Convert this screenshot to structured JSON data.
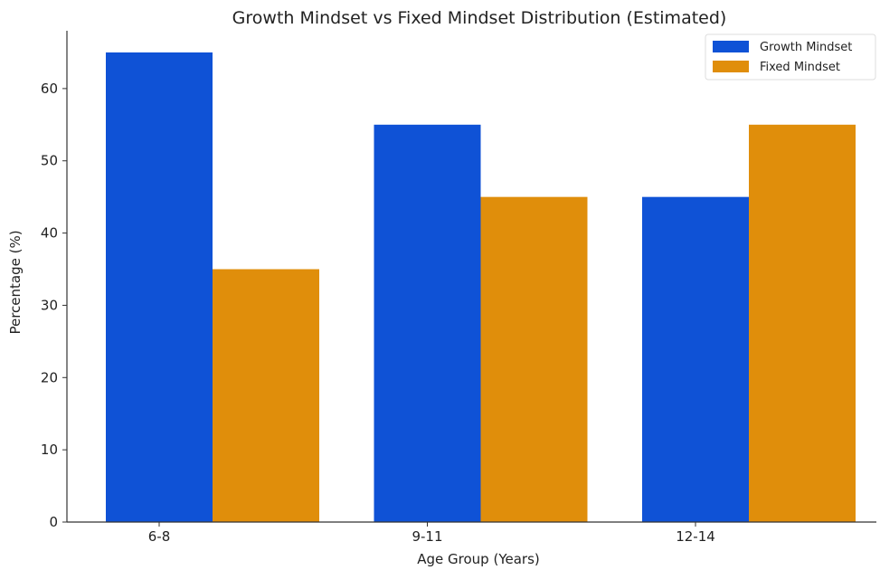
{
  "chart_data": {
    "type": "bar",
    "title": "Growth Mindset vs Fixed Mindset Distribution (Estimated)",
    "xlabel": "Age Group (Years)",
    "ylabel": "Percentage (%)",
    "categories": [
      "6-8",
      "9-11",
      "12-14"
    ],
    "series": [
      {
        "name": "Growth Mindset",
        "values": [
          65,
          55,
          45
        ],
        "color": "#0f52d6"
      },
      {
        "name": "Fixed Mindset",
        "values": [
          35,
          45,
          55
        ],
        "color": "#e08e0b"
      }
    ],
    "ylim": [
      0,
      68
    ],
    "yticks": [
      0,
      10,
      20,
      30,
      40,
      50,
      60
    ],
    "grid": false,
    "legend_position": "top-right"
  }
}
